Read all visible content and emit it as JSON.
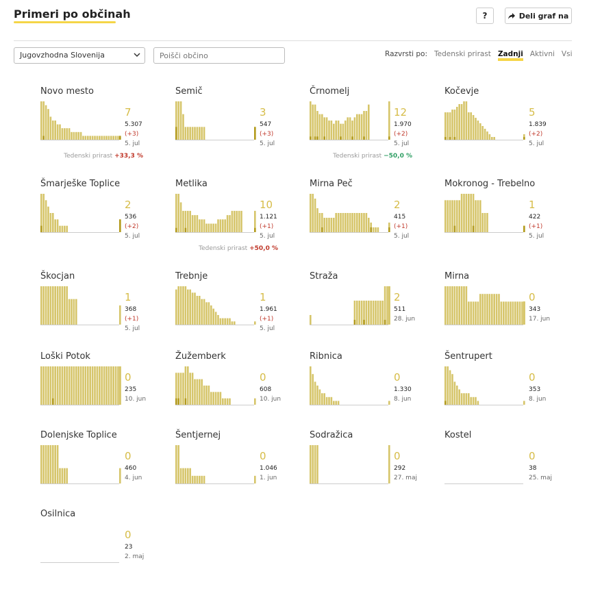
{
  "header": {
    "title": "Primeri po občinah",
    "help_label": "?",
    "share_label": "Deli graf na"
  },
  "filters": {
    "region": "Jugovzhodna Slovenija",
    "search_placeholder": "Poišči občino"
  },
  "sort": {
    "label": "Razvrsti po:",
    "options": [
      "Tedenski prirast",
      "Zadnji",
      "Aktivni",
      "Vsi"
    ],
    "active": "Zadnji"
  },
  "colors": {
    "bar": "#d6c56a",
    "bar_new": "#b39b1e",
    "accent": "#f5d547"
  },
  "growth_label": "Tedenski prirast",
  "chart_data": [
    {
      "type": "bar",
      "title": "Novo mesto",
      "active": "7",
      "total": "5.307",
      "change": "(+3)",
      "date": "5. jul",
      "growth": "+33,3 %",
      "growth_dir": "up",
      "values": [
        10,
        10,
        9,
        8,
        6,
        5,
        5,
        4,
        4,
        3,
        3,
        3,
        3,
        2,
        2,
        2,
        2,
        2,
        1,
        1,
        1,
        1,
        1,
        1,
        1,
        1,
        1,
        1,
        1,
        1,
        1,
        1,
        1,
        1,
        1
      ],
      "new": [
        0,
        1,
        0,
        0,
        0,
        0,
        0,
        0,
        0,
        0,
        0,
        0,
        0,
        0,
        0,
        0,
        0,
        0,
        0,
        0,
        0,
        0,
        0,
        0,
        0,
        0,
        0,
        0,
        0,
        0,
        0,
        0,
        0,
        0,
        1
      ]
    },
    {
      "type": "bar",
      "title": "Semič",
      "active": "3",
      "total": "547",
      "change": "(+3)",
      "date": "5. jul",
      "values": [
        3,
        3,
        3,
        2,
        1,
        1,
        1,
        1,
        1,
        1,
        1,
        1,
        1,
        0,
        0,
        0,
        0,
        0,
        0,
        0,
        0,
        0,
        0,
        0,
        0,
        0,
        0,
        0,
        1
      ],
      "new": [
        1,
        0,
        0,
        0,
        0,
        0,
        0,
        0,
        0,
        0,
        0,
        0,
        0,
        0,
        0,
        0,
        0,
        0,
        0,
        0,
        0,
        0,
        0,
        0,
        0,
        0,
        0,
        0,
        1
      ]
    },
    {
      "type": "bar",
      "title": "Črnomelj",
      "active": "12",
      "total": "1.970",
      "change": "(+2)",
      "date": "5. jul",
      "growth": "−50,0 %",
      "growth_dir": "down",
      "values": [
        12,
        11,
        11,
        9,
        8,
        8,
        7,
        7,
        6,
        6,
        5,
        6,
        6,
        5,
        5,
        6,
        7,
        7,
        6,
        7,
        8,
        8,
        8,
        9,
        9,
        11,
        12
      ],
      "new": [
        1,
        0,
        1,
        1,
        0,
        0,
        1,
        0,
        0,
        0,
        0,
        0,
        0,
        1,
        0,
        0,
        0,
        0,
        1,
        0,
        0,
        0,
        0,
        1,
        0,
        0,
        1
      ]
    },
    {
      "type": "bar",
      "title": "Kočevje",
      "active": "5",
      "total": "1.839",
      "change": "(+2)",
      "date": "5. jul",
      "values": [
        10,
        10,
        10,
        11,
        11,
        12,
        13,
        13,
        14,
        14,
        10,
        10,
        9,
        8,
        7,
        6,
        5,
        4,
        3,
        2,
        1,
        1,
        2
      ],
      "new": [
        1,
        0,
        1,
        0,
        1,
        0,
        0,
        0,
        0,
        0,
        0,
        0,
        0,
        0,
        0,
        0,
        0,
        0,
        0,
        0,
        0,
        0,
        1
      ]
    },
    {
      "type": "bar",
      "title": "Šmarješke Toplice",
      "active": "2",
      "total": "536",
      "change": "(+2)",
      "date": "5. jul",
      "values": [
        6,
        6,
        5,
        4,
        3,
        3,
        2,
        2,
        1,
        1,
        1,
        1,
        0,
        0,
        0,
        0,
        0,
        0,
        0,
        0,
        0,
        0,
        0,
        0,
        0,
        0,
        0,
        0,
        2
      ],
      "new": [
        1,
        0,
        0,
        0,
        0,
        0,
        0,
        0,
        0,
        0,
        0,
        0,
        0,
        0,
        0,
        0,
        0,
        0,
        0,
        0,
        0,
        0,
        0,
        0,
        0,
        0,
        0,
        0,
        2
      ]
    },
    {
      "type": "bar",
      "title": "Metlika",
      "active": "10",
      "total": "1.121",
      "change": "(+1)",
      "date": "5. jul",
      "growth": "+50,0 %",
      "growth_dir": "up",
      "values": [
        9,
        9,
        7,
        5,
        5,
        5,
        5,
        4,
        4,
        4,
        3,
        3,
        3,
        2,
        2,
        2,
        2,
        2,
        3,
        3,
        3,
        3,
        4,
        4,
        5,
        5,
        5,
        5,
        5,
        5
      ],
      "new": [
        1,
        0,
        0,
        0,
        1,
        0,
        0,
        0,
        0,
        0,
        0,
        0,
        0,
        0,
        0,
        0,
        0,
        0,
        0,
        0,
        0,
        0,
        0,
        0,
        0,
        0,
        0,
        0,
        0,
        1
      ]
    },
    {
      "type": "bar",
      "title": "Mirna Peč",
      "active": "2",
      "total": "415",
      "change": "(+1)",
      "date": "5. jul",
      "values": [
        8,
        8,
        7,
        5,
        4,
        4,
        3,
        3,
        3,
        3,
        3,
        4,
        4,
        4,
        4,
        4,
        4,
        4,
        4,
        4,
        4,
        4,
        4,
        4,
        4,
        3,
        2,
        1,
        1,
        1,
        2
      ],
      "new": [
        0,
        0,
        0,
        0,
        0,
        1,
        0,
        0,
        0,
        0,
        0,
        0,
        0,
        0,
        0,
        0,
        0,
        0,
        0,
        0,
        0,
        0,
        0,
        0,
        0,
        0,
        1,
        0,
        0,
        0,
        1
      ]
    },
    {
      "type": "bar",
      "title": "Mokronog - Trebelno",
      "active": "1",
      "total": "422",
      "change": "(+1)",
      "date": "5. jul",
      "values": [
        5,
        5,
        5,
        5,
        5,
        5,
        5,
        6,
        6,
        6,
        6,
        6,
        6,
        5,
        5,
        5,
        3,
        3,
        3,
        0,
        0,
        0,
        0,
        1
      ],
      "new": [
        0,
        0,
        0,
        0,
        1,
        0,
        0,
        0,
        0,
        0,
        0,
        0,
        1,
        0,
        0,
        0,
        0,
        0,
        0,
        0,
        0,
        0,
        0,
        1
      ]
    },
    {
      "type": "bar",
      "title": "Škocjan",
      "active": "1",
      "total": "368",
      "change": "(+1)",
      "date": "5. jul",
      "values": [
        6,
        6,
        6,
        6,
        6,
        6,
        6,
        6,
        6,
        6,
        6,
        6,
        4,
        4,
        4,
        4,
        0,
        0,
        0,
        0,
        0,
        0,
        0,
        0,
        0,
        0,
        0,
        0,
        0,
        0,
        0,
        0,
        0,
        0,
        0,
        0,
        0,
        0,
        0,
        0,
        0,
        3
      ],
      "new": [
        0,
        0,
        0,
        0,
        0,
        0,
        0,
        0,
        0,
        0,
        0,
        0,
        0,
        0,
        0,
        0,
        0,
        0,
        0,
        0,
        0,
        0,
        0,
        0,
        0,
        0,
        0,
        0,
        0,
        0,
        0,
        0,
        0,
        0,
        0,
        0,
        0,
        0,
        0,
        0,
        0,
        0
      ]
    },
    {
      "type": "bar",
      "title": "Trebnje",
      "active": "1",
      "total": "1.961",
      "change": "(+1)",
      "date": "5. jul",
      "values": [
        11,
        12,
        12,
        12,
        12,
        11,
        11,
        10,
        10,
        9,
        9,
        8,
        8,
        7,
        7,
        6,
        5,
        4,
        3,
        2,
        2,
        2,
        2,
        2,
        1,
        1,
        1
      ],
      "new": [
        0,
        0,
        0,
        0,
        0,
        0,
        0,
        0,
        0,
        0,
        0,
        0,
        0,
        0,
        0,
        0,
        0,
        0,
        0,
        0,
        0,
        0,
        0,
        0,
        0,
        0,
        0
      ]
    },
    {
      "type": "bar",
      "title": "Straža",
      "active": "2",
      "total": "511",
      "change": "",
      "date": "28. jun",
      "values": [
        2,
        0,
        0,
        0,
        0,
        0,
        0,
        0,
        0,
        0,
        0,
        0,
        0,
        0,
        0,
        0,
        0,
        0,
        0,
        5,
        5,
        5,
        5,
        5,
        5,
        5,
        5,
        5,
        5,
        5,
        5,
        5,
        8,
        8,
        8,
        8,
        8,
        8,
        8,
        8,
        8
      ],
      "new": [
        0,
        0,
        0,
        0,
        0,
        0,
        0,
        0,
        0,
        0,
        0,
        0,
        0,
        0,
        0,
        0,
        0,
        0,
        0,
        1,
        0,
        0,
        0,
        1,
        0,
        0,
        0,
        0,
        0,
        0,
        0,
        0,
        1,
        0,
        0,
        0,
        0,
        0,
        0,
        0,
        0
      ]
    },
    {
      "type": "bar",
      "title": "Mirna",
      "active": "0",
      "total": "343",
      "change": "",
      "date": "17. jun",
      "values": [
        5,
        5,
        5,
        5,
        5,
        5,
        5,
        5,
        5,
        5,
        3,
        3,
        3,
        3,
        3,
        4,
        4,
        4,
        4,
        4,
        4,
        4,
        4,
        4,
        3,
        3,
        3,
        3,
        3,
        3,
        3,
        3,
        3,
        3,
        3,
        3,
        3,
        3,
        3,
        3,
        3
      ],
      "new": [
        0,
        0,
        0,
        0,
        0,
        0,
        0,
        0,
        0,
        0,
        0,
        0,
        0,
        0,
        0,
        0,
        0,
        0,
        0,
        0,
        0,
        0,
        0,
        0,
        0,
        0,
        0,
        0,
        0,
        0,
        0,
        0,
        0,
        0,
        0,
        0,
        0,
        0,
        0,
        0,
        0
      ]
    },
    {
      "type": "bar",
      "title": "Loški Potok",
      "active": "0",
      "total": "235",
      "change": "",
      "date": "10. jun",
      "values": [
        6,
        6,
        6,
        6,
        6,
        6,
        6,
        6,
        6,
        6,
        6,
        6,
        6,
        6,
        6,
        6,
        6,
        6,
        6,
        6,
        6,
        6,
        6,
        6,
        6,
        6,
        6,
        6,
        6,
        6,
        6,
        6,
        6,
        6,
        6,
        6,
        6,
        6,
        6,
        6
      ],
      "new": [
        0,
        0,
        0,
        0,
        0,
        1,
        0,
        0,
        0,
        0,
        0,
        0,
        0,
        0,
        0,
        0,
        0,
        0,
        0,
        0,
        0,
        0,
        0,
        0,
        0,
        0,
        0,
        0,
        0,
        0,
        0,
        0,
        0,
        0,
        0,
        0,
        0,
        0,
        0,
        0
      ]
    },
    {
      "type": "bar",
      "title": "Žužemberk",
      "active": "0",
      "total": "608",
      "change": "",
      "date": "10. jun",
      "values": [
        5,
        5,
        5,
        5,
        6,
        6,
        5,
        5,
        4,
        4,
        4,
        4,
        3,
        3,
        3,
        2,
        2,
        2,
        2,
        2,
        1,
        1,
        1,
        1,
        1
      ],
      "new": [
        1,
        1,
        0,
        0,
        1,
        0,
        0,
        0,
        0,
        0,
        0,
        0,
        0,
        0,
        0,
        0,
        0,
        0,
        0,
        0,
        0,
        0,
        0,
        0,
        0
      ]
    },
    {
      "type": "bar",
      "title": "Ribnica",
      "active": "0",
      "total": "1.330",
      "change": "",
      "date": "8. jun",
      "values": [
        10,
        8,
        6,
        5,
        4,
        3,
        3,
        2,
        2,
        2,
        1,
        1,
        1,
        1
      ],
      "new": [
        0,
        0,
        0,
        0,
        0,
        0,
        0,
        0,
        0,
        0,
        0,
        0,
        0,
        0
      ]
    },
    {
      "type": "bar",
      "title": "Šentrupert",
      "active": "0",
      "total": "353",
      "change": "",
      "date": "8. jun",
      "values": [
        10,
        10,
        9,
        8,
        6,
        5,
        4,
        3,
        3,
        3,
        3,
        2,
        2,
        2,
        1,
        1
      ],
      "new": [
        1,
        0,
        0,
        0,
        0,
        0,
        0,
        0,
        0,
        0,
        0,
        0,
        0,
        0,
        0,
        0
      ]
    },
    {
      "type": "bar",
      "title": "Dolenjske Toplice",
      "active": "0",
      "total": "460",
      "change": "",
      "date": "4. jun",
      "values": [
        5,
        5,
        5,
        5,
        5,
        5,
        5,
        5,
        2,
        2,
        2,
        2,
        2
      ],
      "new": [
        0,
        0,
        0,
        0,
        0,
        0,
        0,
        0,
        0,
        0,
        0,
        0,
        0
      ]
    },
    {
      "type": "bar",
      "title": "Šentjernej",
      "active": "0",
      "total": "1.046",
      "change": "",
      "date": "1. jun",
      "values": [
        5,
        5,
        2,
        2,
        2,
        2,
        2,
        1,
        1,
        1,
        1,
        1,
        1,
        1
      ],
      "new": [
        0,
        0,
        0,
        0,
        0,
        0,
        0,
        0,
        0,
        0,
        0,
        0,
        0,
        0
      ]
    },
    {
      "type": "bar",
      "title": "Sodražica",
      "active": "0",
      "total": "292",
      "change": "",
      "date": "27. maj",
      "values": [
        5,
        5,
        5,
        5,
        5
      ],
      "new": [
        0,
        0,
        0,
        0,
        0
      ]
    },
    {
      "type": "bar",
      "title": "Kostel",
      "active": "0",
      "total": "38",
      "change": "",
      "date": "25. maj",
      "values": [],
      "new": []
    },
    {
      "type": "bar",
      "title": "Osilnica",
      "active": "0",
      "total": "23",
      "change": "",
      "date": "2. maj",
      "values": [],
      "new": []
    }
  ]
}
